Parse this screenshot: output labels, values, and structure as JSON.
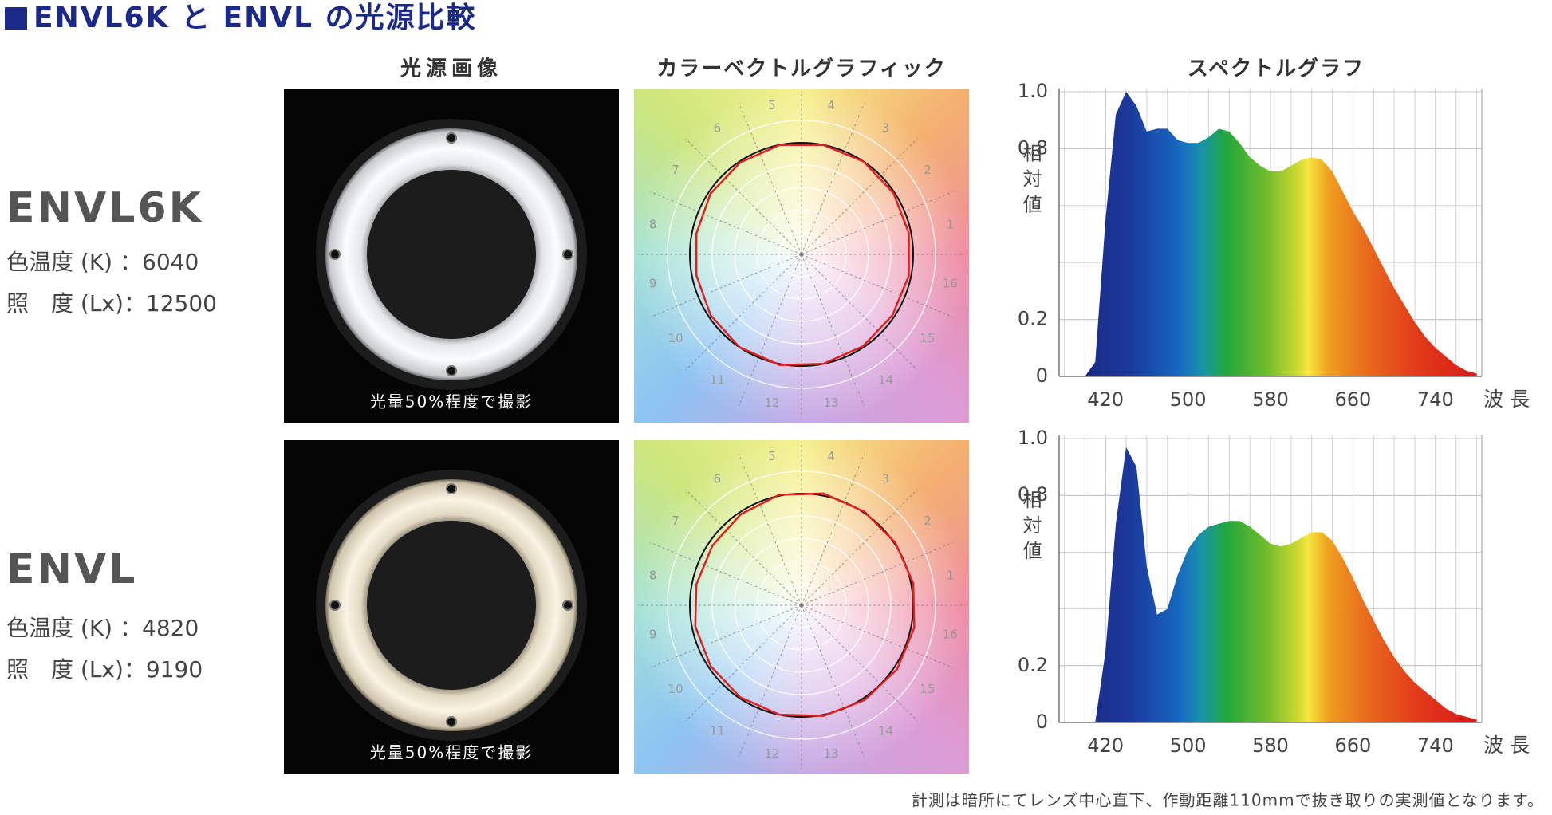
{
  "title": "ENVL6K と ENVL の光源比較",
  "column_headers": [
    "光源画像",
    "カラーベクトルグラフィック",
    "スペクトルグラフ"
  ],
  "products": [
    {
      "name": "ENVL6K",
      "color_temp": "色温度 (K) ：6040",
      "illuminance": "照　度 (Lx)：12500",
      "photo_caption": "光量50%程度で撮影"
    },
    {
      "name": "ENVL",
      "color_temp": "色温度 (K) ：4820",
      "illuminance": "照　度 (Lx)：9190",
      "photo_caption": "光量50%程度で撮影"
    }
  ],
  "chart_data": [
    {
      "type": "radar",
      "categories": [
        "1",
        "2",
        "3",
        "4",
        "5",
        "6",
        "7",
        "8",
        "9",
        "10",
        "11",
        "12",
        "13",
        "14",
        "15",
        "16"
      ],
      "values": [
        0.98,
        0.99,
        1.0,
        1.0,
        1.0,
        0.99,
        0.98,
        0.96,
        0.96,
        0.98,
        1.0,
        1.01,
        1.0,
        0.99,
        0.98,
        0.98
      ],
      "color": "#e02020",
      "reference": 1,
      "reference_color": "#111111",
      "rlim": [
        0,
        1.4
      ],
      "rticks": [
        0.2,
        0.4,
        0.6,
        0.8,
        1.2
      ]
    },
    {
      "type": "area",
      "x": [
        400,
        410,
        420,
        430,
        440,
        450,
        460,
        470,
        480,
        490,
        500,
        510,
        520,
        530,
        540,
        550,
        560,
        570,
        580,
        590,
        600,
        610,
        620,
        630,
        640,
        650,
        660,
        670,
        680,
        690,
        700,
        710,
        720,
        730,
        740,
        750,
        760,
        770,
        780
      ],
      "values": [
        0,
        0.05,
        0.55,
        0.92,
        1.0,
        0.95,
        0.86,
        0.87,
        0.87,
        0.83,
        0.82,
        0.82,
        0.84,
        0.87,
        0.86,
        0.82,
        0.77,
        0.74,
        0.72,
        0.72,
        0.74,
        0.76,
        0.77,
        0.76,
        0.72,
        0.65,
        0.58,
        0.52,
        0.45,
        0.38,
        0.31,
        0.25,
        0.19,
        0.14,
        0.1,
        0.07,
        0.04,
        0.02,
        0.01
      ],
      "xlim": [
        375,
        785
      ],
      "xticks": [
        420,
        500,
        580,
        660,
        740
      ],
      "ylim": [
        0,
        1
      ],
      "yticks": [
        0,
        0.2,
        0.8,
        {
          "value": 1,
          "label": "1.0"
        }
      ],
      "xlabel": "波長",
      "ylabel": "相対値",
      "grid": true
    },
    {
      "type": "radar",
      "categories": [
        "1",
        "2",
        "3",
        "4",
        "5",
        "6",
        "7",
        "8",
        "9",
        "10",
        "11",
        "12",
        "13",
        "14",
        "15",
        "16"
      ],
      "values": [
        1.02,
        1.01,
        1.01,
        1.02,
        1.01,
        0.98,
        0.96,
        0.96,
        0.97,
        0.98,
        0.99,
        1.0,
        1.01,
        1.02,
        1.03,
        1.03
      ],
      "color": "#e02020",
      "reference": 1,
      "reference_color": "#111111",
      "rlim": [
        0,
        1.4
      ],
      "rticks": [
        0.2,
        0.4,
        0.6,
        0.8,
        1.2
      ]
    },
    {
      "type": "area",
      "x": [
        400,
        410,
        420,
        430,
        440,
        450,
        460,
        470,
        480,
        490,
        500,
        510,
        520,
        530,
        540,
        550,
        560,
        570,
        580,
        590,
        600,
        610,
        620,
        630,
        640,
        650,
        660,
        670,
        680,
        690,
        700,
        710,
        720,
        730,
        740,
        750,
        760,
        770,
        780
      ],
      "values": [
        0,
        0,
        0.25,
        0.7,
        0.97,
        0.9,
        0.55,
        0.38,
        0.4,
        0.52,
        0.61,
        0.66,
        0.69,
        0.7,
        0.71,
        0.71,
        0.69,
        0.66,
        0.63,
        0.62,
        0.63,
        0.65,
        0.67,
        0.67,
        0.64,
        0.58,
        0.51,
        0.43,
        0.36,
        0.29,
        0.23,
        0.18,
        0.14,
        0.11,
        0.08,
        0.05,
        0.03,
        0.02,
        0.01
      ],
      "xlim": [
        375,
        785
      ],
      "xticks": [
        420,
        500,
        580,
        660,
        740
      ],
      "ylim": [
        0,
        1
      ],
      "yticks": [
        0,
        0.2,
        0.8,
        {
          "value": 1,
          "label": "1.0"
        }
      ],
      "xlabel": "波長",
      "ylabel": "相対値",
      "grid": true
    }
  ],
  "footnote": "計測は暗所にてレンズ中心直下、作動距離110mmで抜き取りの実測値となります。"
}
